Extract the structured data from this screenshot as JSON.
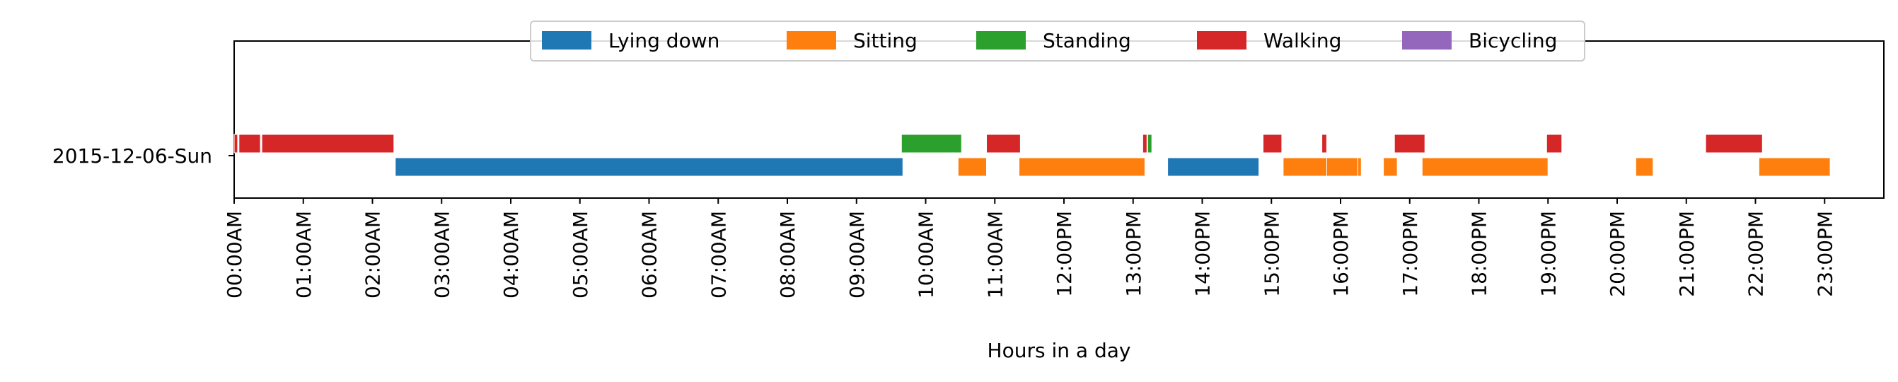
{
  "chart_data": {
    "type": "timeline",
    "xlabel": "Hours in a day",
    "ylabel": "",
    "day_label": "2015-12-06-Sun",
    "xlim": [
      0,
      24
    ],
    "grid": false,
    "legend_position": "top-center",
    "x_tick_labels": [
      "00:00AM",
      "01:00AM",
      "02:00AM",
      "03:00AM",
      "04:00AM",
      "05:00AM",
      "06:00AM",
      "07:00AM",
      "08:00AM",
      "09:00AM",
      "10:00AM",
      "11:00AM",
      "12:00PM",
      "13:00PM",
      "14:00PM",
      "15:00PM",
      "16:00PM",
      "17:00PM",
      "18:00PM",
      "19:00PM",
      "20:00PM",
      "21:00PM",
      "22:00PM",
      "23:00PM"
    ],
    "x_tick_values": [
      0,
      1,
      2,
      3,
      4,
      5,
      6,
      7,
      8,
      9,
      10,
      11,
      12,
      13,
      14,
      15,
      16,
      17,
      18,
      19,
      20,
      21,
      22,
      23
    ],
    "series": [
      {
        "name": "Lying down",
        "color": "#1f77b4",
        "lane": "lower",
        "intervals": [
          [
            2.33,
            9.67
          ],
          [
            13.5,
            14.82
          ]
        ]
      },
      {
        "name": "Sitting",
        "color": "#ff7f0e",
        "lane": "lower",
        "intervals": [
          [
            10.47,
            10.88
          ],
          [
            11.35,
            13.17
          ],
          [
            15.17,
            15.8
          ],
          [
            15.8,
            16.25
          ],
          [
            16.25,
            16.3
          ],
          [
            16.62,
            16.82
          ],
          [
            17.18,
            19.0
          ],
          [
            20.27,
            20.52
          ],
          [
            22.05,
            23.08
          ]
        ]
      },
      {
        "name": "Standing",
        "color": "#2ca02c",
        "lane": "upper",
        "intervals": [
          [
            9.65,
            10.52
          ],
          [
            13.21,
            13.27
          ]
        ]
      },
      {
        "name": "Walking",
        "color": "#d62728",
        "lane": "upper",
        "intervals": [
          [
            0.0,
            0.05
          ],
          [
            0.07,
            0.38
          ],
          [
            0.4,
            2.31
          ],
          [
            10.88,
            11.37
          ],
          [
            13.14,
            13.2
          ],
          [
            14.88,
            15.15
          ],
          [
            15.73,
            15.8
          ],
          [
            16.78,
            17.22
          ],
          [
            18.98,
            19.2
          ],
          [
            21.28,
            22.1
          ]
        ]
      },
      {
        "name": "Bicycling",
        "color": "#9467bd",
        "lane": "upper",
        "intervals": []
      }
    ]
  }
}
